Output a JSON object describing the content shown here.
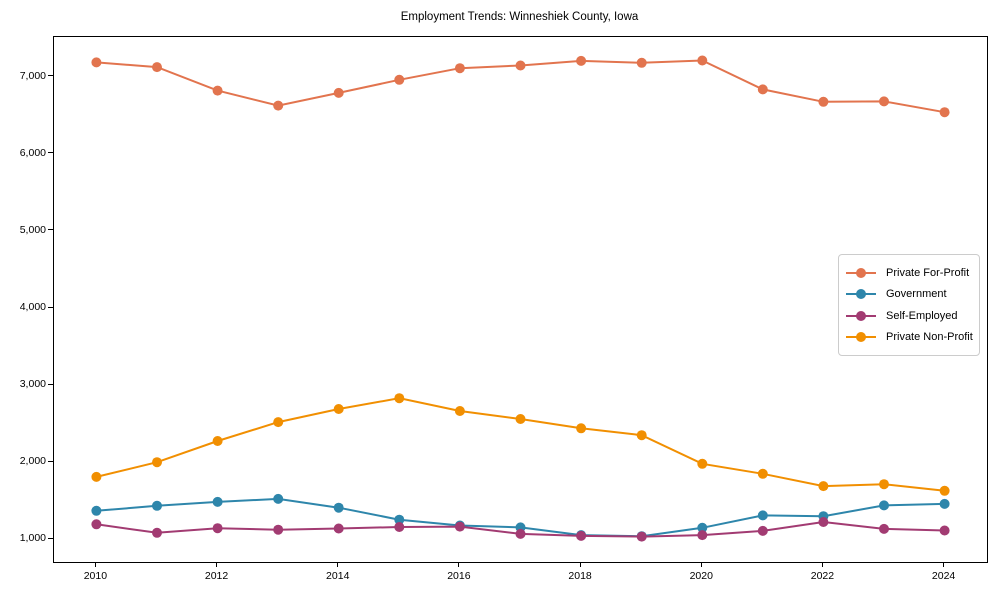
{
  "title": "Employment Trends: Winneshiek County, Iowa",
  "chart_data": {
    "type": "line",
    "title": "Employment Trends: Winneshiek County, Iowa",
    "xlabel": "",
    "ylabel": "",
    "grid": false,
    "legend_position": "center right",
    "xlim": [
      2009.3,
      2024.7
    ],
    "ylim": [
      706,
      7515
    ],
    "x": [
      2010,
      2011,
      2012,
      2013,
      2014,
      2015,
      2016,
      2017,
      2018,
      2019,
      2020,
      2021,
      2022,
      2023,
      2024
    ],
    "xticks": {
      "values": [
        2010,
        2012,
        2014,
        2016,
        2018,
        2020,
        2022,
        2024
      ],
      "labels": [
        "2010",
        "2012",
        "2014",
        "2016",
        "2018",
        "2020",
        "2022",
        "2024"
      ]
    },
    "yticks": {
      "values": [
        1000,
        2000,
        3000,
        4000,
        5000,
        6000,
        7000
      ],
      "labels": [
        "1,000",
        "2,000",
        "3,000",
        "4,000",
        "5,000",
        "6,000",
        "7,000"
      ]
    },
    "series": [
      {
        "name": "Private For-Profit",
        "color": "#E2744E",
        "values": [
          7185,
          7125,
          6820,
          6625,
          6790,
          6960,
          7110,
          7145,
          7205,
          7180,
          7210,
          6835,
          6675,
          6680,
          6540
        ]
      },
      {
        "name": "Government",
        "color": "#2E86AB",
        "values": [
          1370,
          1435,
          1485,
          1525,
          1410,
          1255,
          1180,
          1155,
          1055,
          1040,
          1150,
          1310,
          1300,
          1440,
          1460
        ]
      },
      {
        "name": "Self-Employed",
        "color": "#A23B72",
        "values": [
          1195,
          1085,
          1145,
          1125,
          1140,
          1160,
          1165,
          1070,
          1045,
          1035,
          1055,
          1110,
          1225,
          1135,
          1115
        ]
      },
      {
        "name": "Private Non-Profit",
        "color": "#F18F01",
        "values": [
          1810,
          2000,
          2275,
          2520,
          2690,
          2830,
          2665,
          2560,
          2440,
          2350,
          1980,
          1850,
          1690,
          1715,
          1630
        ]
      }
    ]
  }
}
